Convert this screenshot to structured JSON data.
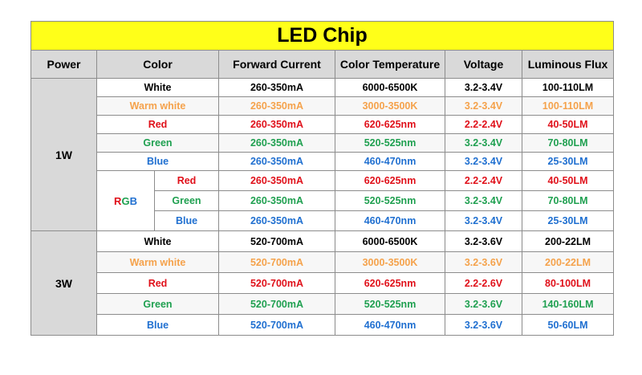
{
  "title": "LED Chip",
  "headers": {
    "power": "Power",
    "color": "Color",
    "current": "Forward Current",
    "temp": "Color Temperature",
    "voltage": "Voltage",
    "flux": "Luminous Flux"
  },
  "rgb": {
    "R": "R",
    "G": "G",
    "B": "B"
  },
  "colors": {
    "white": "#000000",
    "warm": "#f5a24b",
    "red": "#e0101a",
    "green": "#1fa050",
    "blue": "#1f6fd0"
  },
  "group_1w": {
    "power": "1W",
    "rows": [
      {
        "color": "White",
        "current": "260-350mA",
        "temp": "6000-6500K",
        "voltage": "3.2-3.4V",
        "flux": "100-110LM"
      },
      {
        "color": "Warm white",
        "current": "260-350mA",
        "temp": "3000-3500K",
        "voltage": "3.2-3.4V",
        "flux": "100-110LM"
      },
      {
        "color": "Red",
        "current": "260-350mA",
        "temp": "620-625nm",
        "voltage": "2.2-2.4V",
        "flux": "40-50LM"
      },
      {
        "color": "Green",
        "current": "260-350mA",
        "temp": "520-525nm",
        "voltage": "3.2-3.4V",
        "flux": "70-80LM"
      },
      {
        "color": "Blue",
        "current": "260-350mA",
        "temp": "460-470nm",
        "voltage": "3.2-3.4V",
        "flux": "25-30LM"
      }
    ],
    "rgb_rows": [
      {
        "color": "Red",
        "current": "260-350mA",
        "temp": "620-625nm",
        "voltage": "2.2-2.4V",
        "flux": "40-50LM"
      },
      {
        "color": "Green",
        "current": "260-350mA",
        "temp": "520-525nm",
        "voltage": "3.2-3.4V",
        "flux": "70-80LM"
      },
      {
        "color": "Blue",
        "current": "260-350mA",
        "temp": "460-470nm",
        "voltage": "3.2-3.4V",
        "flux": "25-30LM"
      }
    ]
  },
  "group_3w": {
    "power": "3W",
    "rows": [
      {
        "color": "White",
        "current": "520-700mA",
        "temp": "6000-6500K",
        "voltage": "3.2-3.6V",
        "flux": "200-22LM"
      },
      {
        "color": "Warm white",
        "current": "520-700mA",
        "temp": "3000-3500K",
        "voltage": "3.2-3.6V",
        "flux": "200-22LM"
      },
      {
        "color": "Red",
        "current": "520-700mA",
        "temp": "620-625nm",
        "voltage": "2.2-2.6V",
        "flux": "80-100LM"
      },
      {
        "color": "Green",
        "current": "520-700mA",
        "temp": "520-525nm",
        "voltage": "3.2-3.6V",
        "flux": "140-160LM"
      },
      {
        "color": "Blue",
        "current": "520-700mA",
        "temp": "460-470nm",
        "voltage": "3.2-3.6V",
        "flux": "50-60LM"
      }
    ]
  }
}
